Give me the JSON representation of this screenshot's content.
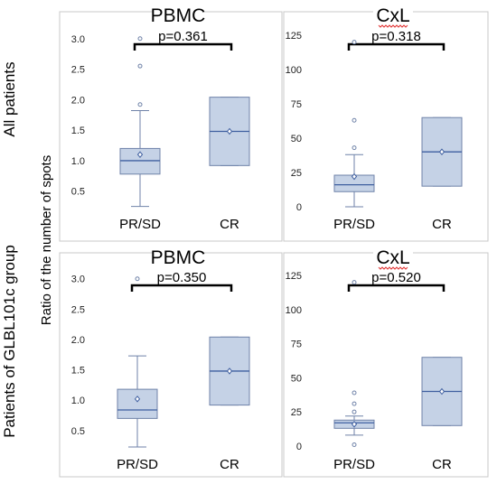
{
  "row_labels": [
    "All patients",
    "Patients of GLBL101c group"
  ],
  "ylabel": "Ratio of the number of spots",
  "chart_data": [
    {
      "type": "box",
      "title": "PBMC",
      "row": 0,
      "categories": [
        "PR/SD",
        "CR"
      ],
      "ylim": [
        0.2,
        3.1
      ],
      "yticks": [
        0.5,
        1.0,
        1.5,
        2.0,
        2.5,
        3.0
      ],
      "ytick_labels": [
        "0.5",
        "1.0",
        "1.5",
        "2.0",
        "2.5",
        "3.0"
      ],
      "pvalue": "p=0.361",
      "boxes": [
        {
          "category": "PR/SD",
          "whisker_low": 0.25,
          "q1": 0.78,
          "median": 1.0,
          "q3": 1.2,
          "whisker_high": 1.82,
          "mean": 1.1,
          "outliers": [
            1.92,
            2.55,
            3.0
          ]
        },
        {
          "category": "CR",
          "whisker_low": 0.92,
          "q1": 0.92,
          "median": 1.48,
          "q3": 2.04,
          "whisker_high": 2.04,
          "mean": 1.48,
          "outliers": []
        }
      ]
    },
    {
      "type": "box",
      "title": "CxL",
      "row": 0,
      "categories": [
        "PR/SD",
        "CR"
      ],
      "ylim": [
        -2,
        127
      ],
      "yticks": [
        0,
        25,
        50,
        75,
        100,
        125
      ],
      "ytick_labels": [
        "0",
        "25",
        "50",
        "75",
        "100",
        "125"
      ],
      "pvalue": "p=0.318",
      "boxes": [
        {
          "category": "PR/SD",
          "whisker_low": 0,
          "q1": 11,
          "median": 16,
          "q3": 23,
          "whisker_high": 38,
          "mean": 22,
          "outliers": [
            43,
            63,
            120
          ]
        },
        {
          "category": "CR",
          "whisker_low": 15,
          "q1": 15,
          "median": 40,
          "q3": 65,
          "whisker_high": 65,
          "mean": 40,
          "outliers": []
        }
      ]
    },
    {
      "type": "box",
      "title": "PBMC",
      "row": 1,
      "categories": [
        "PR/SD",
        "CR"
      ],
      "ylim": [
        0.2,
        3.1
      ],
      "yticks": [
        0.5,
        1.0,
        1.5,
        2.0,
        2.5,
        3.0
      ],
      "ytick_labels": [
        "0.5",
        "1.0",
        "1.5",
        "2.0",
        "2.5",
        "3.0"
      ],
      "pvalue": "p=0.350",
      "boxes": [
        {
          "category": "PR/SD",
          "whisker_low": 0.23,
          "q1": 0.7,
          "median": 0.84,
          "q3": 1.18,
          "whisker_high": 1.73,
          "mean": 1.02,
          "outliers": [
            3.0
          ]
        },
        {
          "category": "CR",
          "whisker_low": 0.92,
          "q1": 0.92,
          "median": 1.48,
          "q3": 2.04,
          "whisker_high": 2.04,
          "mean": 1.48,
          "outliers": []
        }
      ]
    },
    {
      "type": "box",
      "title": "CxL",
      "row": 1,
      "categories": [
        "PR/SD",
        "CR"
      ],
      "ylim": [
        -2,
        127
      ],
      "yticks": [
        0,
        25,
        50,
        75,
        100,
        125
      ],
      "ytick_labels": [
        "0",
        "25",
        "50",
        "75",
        "100",
        "125"
      ],
      "pvalue": "p=0.520",
      "boxes": [
        {
          "category": "PR/SD",
          "whisker_low": 8,
          "q1": 13,
          "median": 17,
          "q3": 19,
          "whisker_high": 22,
          "mean": 16,
          "outliers": [
            1,
            25,
            31,
            39,
            120
          ]
        },
        {
          "category": "CR",
          "whisker_low": 15,
          "q1": 15,
          "median": 40,
          "q3": 65,
          "whisker_high": 65,
          "mean": 40,
          "outliers": []
        }
      ]
    }
  ]
}
